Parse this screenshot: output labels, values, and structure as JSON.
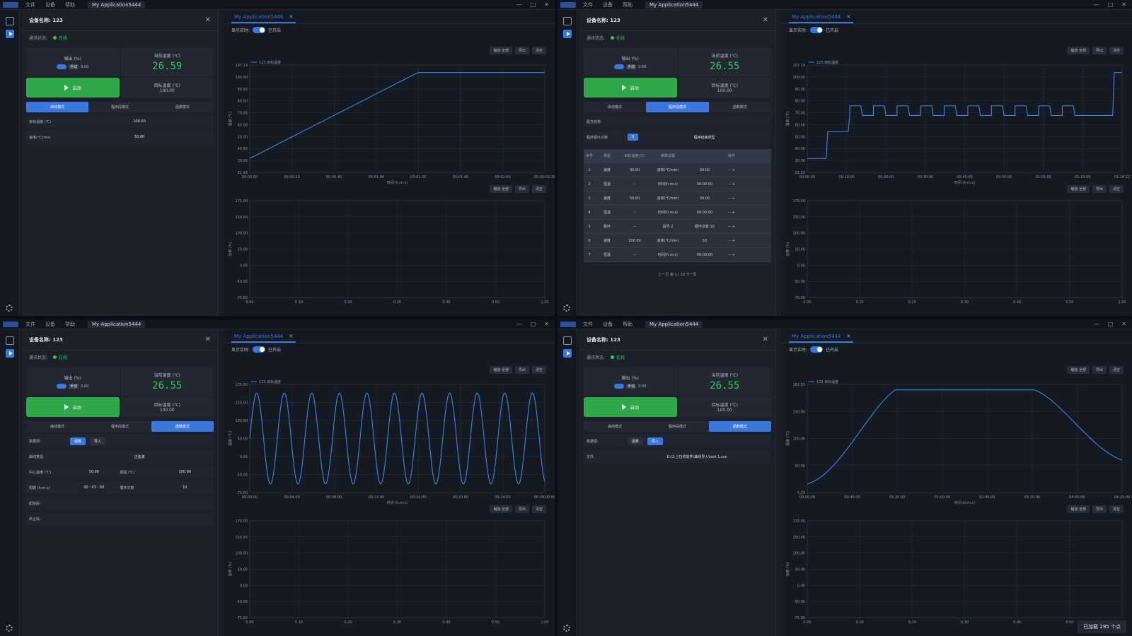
{
  "menu": [
    "文件",
    "设备",
    "帮助"
  ],
  "app_select": "My Application5444",
  "window_buttons": [
    "—",
    "□",
    "✕"
  ],
  "device_title": "设备名称: 123",
  "conn_label": "通讯状态:",
  "conn_status": "在线",
  "power_label": "输出 (%)",
  "power_tag": "自动",
  "power_mode": "手动",
  "power_value": "0.00",
  "cur_temp_label": "当前温度 (℃)",
  "target_label": "目标温度 (℃)",
  "target_value": "100.00",
  "start_label": "启动",
  "modes": [
    "曲线模式",
    "程序段模式",
    "函数模式"
  ],
  "chart_tab": "My Application5444",
  "live_label": "显示实时:",
  "live_state": "已开启",
  "tbtns": [
    "缩放·全部",
    "导出",
    "清空"
  ],
  "legend": "123 目标温度",
  "y_label": "温度 (℃)",
  "x_label": "时间 (h:m:s)",
  "bottom_y_label": "功率 (%)",
  "bottom_y_ticks": [
    "175.00",
    "150.00",
    "100.00",
    "50.00",
    "0.00",
    "-50.00",
    "-75.00"
  ],
  "bottom_x_ticks": [
    "0.00",
    "0.10",
    "0.20",
    "0.30",
    "0.40",
    "0.50",
    "1.00"
  ],
  "panels": [
    {
      "cur_temp": "26.59",
      "mode_index": 0,
      "params": [
        {
          "label": "目标温度 (℃)",
          "value": "100.00"
        },
        {
          "label": "速率(℃/min)",
          "value": "50.00"
        }
      ],
      "y_ticks": [
        "107.14",
        "100.00",
        "90.00",
        "80.00",
        "70.00",
        "60.00",
        "50.00",
        "40.00",
        "30.00",
        "21.23"
      ],
      "x_ticks": [
        "00:00:00",
        "00:00:20",
        "00:00:40",
        "00:01:00",
        "00:01:20",
        "00:01:40",
        "00:02:00",
        "00:00:02:28"
      ],
      "curve": "ramp"
    },
    {
      "cur_temp": "26.55",
      "mode_index": 1,
      "recipe_label": "配方名称:",
      "loop_label": "程序循环次数",
      "loop_value": "0",
      "end_label": "程序结束类型",
      "table_header": [
        "序号",
        "类型",
        "目标温度(℃)",
        "参数设置",
        "",
        "操作"
      ],
      "table_rows": [
        [
          "1",
          "速度",
          "30.00",
          "速率(℃/min)",
          "30.00"
        ],
        [
          "2",
          "恒温",
          "--",
          "时间(h:m:s)",
          "00:00:00"
        ],
        [
          "3",
          "速度",
          "50.00",
          "速率(℃/min)",
          "30.00"
        ],
        [
          "4",
          "恒温",
          "--",
          "时间(h:m:s)",
          "00:00:00"
        ],
        [
          "5",
          "循环",
          "--",
          "段号 2",
          "循环次数 10"
        ],
        [
          "6",
          "速度",
          "100.00",
          "速率(℃/min)",
          "50"
        ],
        [
          "7",
          "恒温",
          "--",
          "时间(h:m:s)",
          "00:00:00"
        ]
      ],
      "pager": [
        "上一页",
        "第",
        "1",
        "/ 10",
        "下一页"
      ],
      "y_ticks": [
        "107.14",
        "100.00",
        "90.00",
        "80.00",
        "70.00",
        "60.00",
        "50.00",
        "40.00",
        "30.00",
        "21.23"
      ],
      "x_ticks": [
        "00:00:00",
        "00:10:00",
        "00:20:00",
        "00:30:00",
        "00:40:00",
        "00:50:00",
        "01:00:00",
        "01:10:00",
        "01:16:22"
      ],
      "curve": "steps"
    },
    {
      "cur_temp": "26.55",
      "mode_index": 2,
      "fn_source_label": "数据源:",
      "fn_sources": [
        "函数",
        "导入"
      ],
      "fn_type_label": "曲线类型:",
      "fn_type": "正弦波",
      "params": [
        {
          "label": "中心温度 (℃)",
          "value": "50.00",
          "label2": "振幅 (℃)",
          "value2": "100.00"
        },
        {
          "label": "周期 (h:m:s)",
          "value": "00 : 03 : 00",
          "label2": "循环次数",
          "value2": "10"
        }
      ],
      "start_seg_label": "起始段:",
      "end_seg_label": "终止段:",
      "y_ticks": [
        "175.00",
        "150.00",
        "100.00",
        "50.00",
        "0.00",
        "-50.00",
        "-75.00"
      ],
      "x_ticks": [
        "00:00:00",
        "00:04:00",
        "00:08:00",
        "00:12:00",
        "00:16:00",
        "00:20:00",
        "00:24:00",
        "00:28:00:00"
      ],
      "curve": "sine"
    },
    {
      "cur_temp": "26.55",
      "mode_index": 2,
      "fn_source_label": "数据源:",
      "fn_sources": [
        "函数",
        "导入"
      ],
      "file_label": "文件:",
      "file_path": "D:\\3.上位机软件\\曲线导入\\test 1.csv",
      "y_ticks": [
        "182.55",
        "150.00",
        "100.00",
        "50.00",
        "5.33"
      ],
      "x_ticks": [
        "00:00:00",
        "00:40:00",
        "01:20:00",
        "02:00:00",
        "02:40:00",
        "03:20:00",
        "04:00:00",
        "04:25:00"
      ],
      "curve": "trap",
      "status": "已加载 295 个点"
    }
  ],
  "colors": {
    "accent": "#3a78e0",
    "green": "#2ecc56",
    "line": "#3d86e8"
  }
}
